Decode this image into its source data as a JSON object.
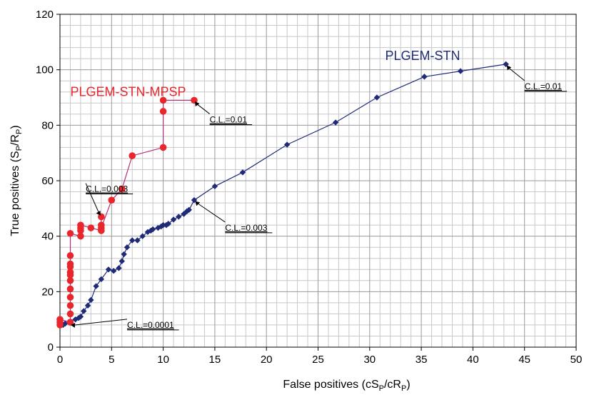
{
  "chart_data": {
    "type": "scatter",
    "xlabel": "False positives (cS",
    "xlabel_sub_1": "P",
    "xlabel_mid": "/cR",
    "xlabel_sub_2": "P",
    "xlabel_end": ")",
    "ylabel": "True positives (S",
    "ylabel_sub_1": "P",
    "ylabel_mid": "/R",
    "ylabel_sub_2": "P",
    "ylabel_end": ")",
    "xlim": [
      0,
      50
    ],
    "ylim": [
      0,
      120
    ],
    "x_ticks": [
      0,
      5,
      10,
      15,
      20,
      25,
      30,
      35,
      40,
      45,
      50
    ],
    "y_ticks": [
      0,
      20,
      40,
      60,
      80,
      100,
      120
    ],
    "x_minor_step": 1,
    "y_minor_step": 4,
    "grid": true,
    "series": [
      {
        "name": "PLGEM-STN",
        "color": "#1f2a78",
        "marker": "diamond",
        "x": [
          0.3,
          0.5,
          1.0,
          1.5,
          1.8,
          2.0,
          2.3,
          2.7,
          3.0,
          3.5,
          4.0,
          4.7,
          5.2,
          5.7,
          6.0,
          6.2,
          6.5,
          7.0,
          7.5,
          8.0,
          8.5,
          8.8,
          9.0,
          9.5,
          9.8,
          10.0,
          10.3,
          10.5,
          11.0,
          11.5,
          12.0,
          12.3,
          12.5,
          13.0,
          15.0,
          17.7,
          22.0,
          26.7,
          30.7,
          35.3,
          38.8,
          43.2
        ],
        "y": [
          8,
          8.5,
          9,
          10,
          10.5,
          11,
          13,
          15,
          17,
          22,
          24.5,
          28,
          27.5,
          28.5,
          31,
          33.5,
          36,
          38.5,
          38.5,
          40,
          41.5,
          42,
          42.5,
          43,
          43.5,
          44,
          44,
          44.5,
          46,
          47,
          48,
          49,
          49.5,
          53,
          58,
          63,
          73,
          81,
          90,
          97.5,
          99.5,
          102
        ]
      },
      {
        "name": "PLGEM-STN-MPSP",
        "color": "#e8262c",
        "line_color": "#b0307a",
        "marker": "circle",
        "x": [
          0,
          0,
          0,
          1,
          1,
          1,
          1,
          1,
          1,
          1,
          1,
          1,
          1,
          1,
          1,
          2,
          2,
          2,
          2,
          3,
          4,
          4,
          4,
          4,
          5,
          6,
          7,
          10,
          10,
          10,
          13
        ],
        "y": [
          8,
          9,
          10,
          9,
          12,
          15,
          18,
          21,
          24,
          26,
          27,
          29,
          30,
          33,
          41,
          40,
          42,
          43,
          44,
          43,
          42,
          44,
          47,
          43,
          53,
          57,
          69,
          72,
          85,
          89,
          89
        ]
      }
    ],
    "annotations": [
      {
        "text": "C.L.=0.01",
        "arrow_to": [
          43.2,
          102
        ],
        "label_at": [
          45,
          93
        ]
      },
      {
        "text": "C.L.=0.01",
        "arrow_to": [
          13,
          89
        ],
        "label_at": [
          14.5,
          81
        ]
      },
      {
        "text": "C.L.=0.003",
        "arrow_to": [
          4,
          47
        ],
        "label_at": [
          2.5,
          56
        ]
      },
      {
        "text": "C.L.=0.003",
        "arrow_to": [
          13,
          53
        ],
        "label_at": [
          16,
          42
        ]
      },
      {
        "text": "C.L.=0.0001",
        "arrow_to": [
          0.9,
          8
        ],
        "label_at": [
          6.5,
          7
        ]
      }
    ]
  }
}
